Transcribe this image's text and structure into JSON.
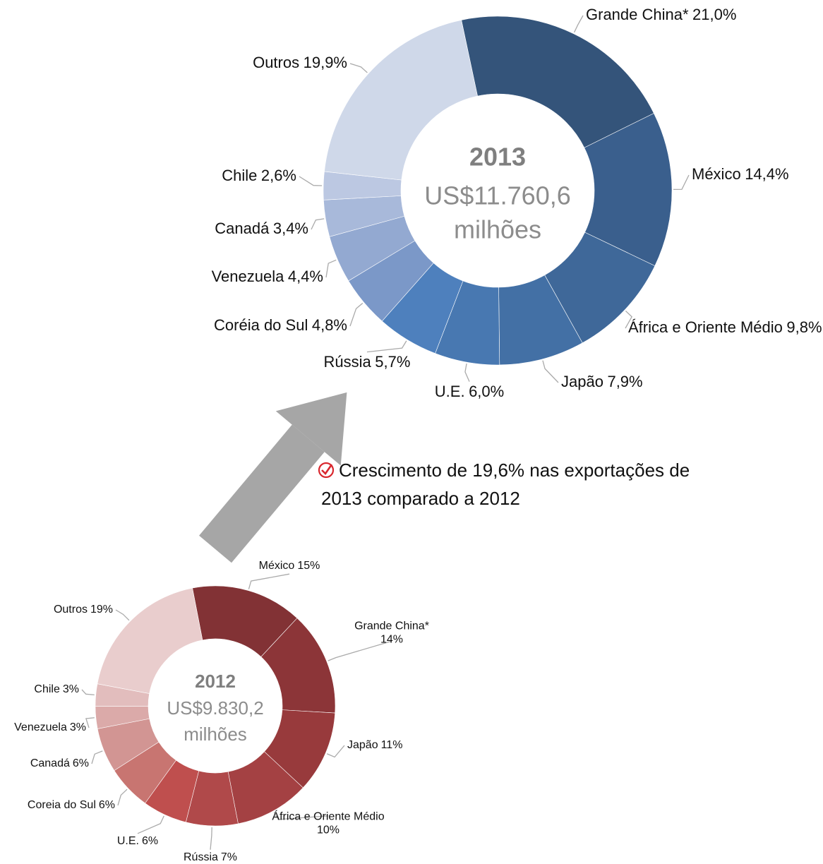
{
  "chart_data": [
    {
      "type": "donut",
      "center_text": [
        "2013",
        "US$11.760,6",
        "milhões"
      ],
      "categories": [
        "Grande China*",
        "México",
        "África e Oriente Médio",
        "Japão",
        "U.E.",
        "Rússia",
        "Coréia do Sul",
        "Venezuela",
        "Canadá",
        "Chile",
        "Outros"
      ],
      "values": [
        21.0,
        14.4,
        9.8,
        7.9,
        6.0,
        5.7,
        4.8,
        4.4,
        3.4,
        2.6,
        19.9
      ],
      "value_labels": [
        "21,0%",
        "14,4%",
        "9,8%",
        "7,9%",
        "6,0%",
        "5,7%",
        "4,8%",
        "4,4%",
        "3,4%",
        "2,6%",
        "19,9%"
      ],
      "colors": [
        "#34547a",
        "#3a5f8d",
        "#3f6899",
        "#4370a5",
        "#4878b1",
        "#4e80bd",
        "#7b98c8",
        "#93a9d1",
        "#a8b9da",
        "#bcc8e2",
        "#cfd8e9"
      ]
    },
    {
      "type": "donut",
      "center_text": [
        "2012",
        "US$9.830,2",
        "milhões"
      ],
      "categories": [
        "México",
        "Grande China*",
        "Japão",
        "África e Oriente Médio",
        "Rússia",
        "U.E.",
        "Coreia do Sul",
        "Canadá",
        "Venezuela",
        "Chile",
        "Outros"
      ],
      "values": [
        15,
        14,
        11,
        10,
        7,
        6,
        6,
        6,
        3,
        3,
        19
      ],
      "value_labels": [
        "15%",
        "14%",
        "11%",
        "10%",
        "7%",
        "6%",
        "6%",
        "6%",
        "3%",
        "3%",
        "19%"
      ],
      "colors": [
        "#823235",
        "#8c3538",
        "#983a3c",
        "#a44143",
        "#b0494a",
        "#bf4f4e",
        "#c87571",
        "#d29593",
        "#dbaaa9",
        "#e2bdbd",
        "#e9cdcd"
      ]
    }
  ],
  "callout": {
    "lines": [
      "Crescimento de 19,6% nas exportações de",
      "2013 comparado a 2012"
    ]
  }
}
